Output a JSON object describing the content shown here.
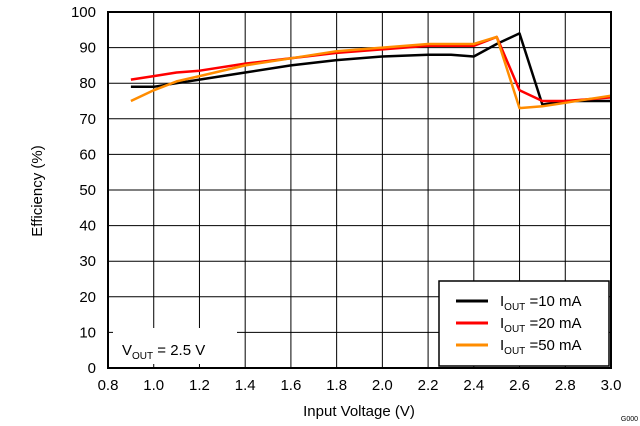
{
  "chart_data": {
    "type": "line",
    "xlabel": "Input Voltage (V)",
    "ylabel": "Efficiency (%)",
    "xlim": [
      0.8,
      3.0
    ],
    "ylim": [
      0,
      100
    ],
    "xticks": [
      0.8,
      1.0,
      1.2,
      1.4,
      1.6,
      1.8,
      2.0,
      2.2,
      2.4,
      2.6,
      2.8,
      3.0
    ],
    "xtick_labels": [
      "0.8",
      "1.0",
      "1.2",
      "1.4",
      "1.6",
      "1.8",
      "2.0",
      "2.2",
      "2.4",
      "2.6",
      "2.8",
      "3.0"
    ],
    "yticks": [
      0,
      10,
      20,
      30,
      40,
      50,
      60,
      70,
      80,
      90,
      100
    ],
    "ytick_labels": [
      "0",
      "10",
      "20",
      "30",
      "40",
      "50",
      "60",
      "70",
      "80",
      "90",
      "100"
    ],
    "grid": true,
    "legend_position": "bottom-right",
    "annotation": {
      "prefix": "V",
      "subscript": "OUT",
      "suffix": " = 2.5 V",
      "position": "bottom-left"
    },
    "watermark": "G000",
    "series": [
      {
        "name": "IOUT=10 mA",
        "label_prefix": "I",
        "label_subscript": "OUT",
        "label_suffix": " =10 mA",
        "color": "#000000",
        "x": [
          0.9,
          1.0,
          1.1,
          1.2,
          1.4,
          1.6,
          1.8,
          2.0,
          2.2,
          2.3,
          2.4,
          2.5,
          2.6,
          2.7,
          2.8,
          2.9,
          3.0
        ],
        "y": [
          79,
          79,
          80,
          81,
          83,
          85,
          86.5,
          87.5,
          88,
          88,
          87.5,
          91,
          94,
          74,
          75,
          75,
          75
        ]
      },
      {
        "name": "IOUT=20 mA",
        "label_prefix": "I",
        "label_subscript": "OUT",
        "label_suffix": " =20 mA",
        "color": "#ff0000",
        "x": [
          0.9,
          1.0,
          1.1,
          1.2,
          1.4,
          1.6,
          1.8,
          2.0,
          2.2,
          2.3,
          2.4,
          2.5,
          2.6,
          2.7,
          2.8,
          2.9,
          3.0
        ],
        "y": [
          81,
          82,
          83,
          83.5,
          85.5,
          87,
          88.5,
          89.5,
          90.5,
          90.5,
          90.5,
          93,
          78,
          75,
          75,
          75.5,
          76
        ]
      },
      {
        "name": "IOUT=50 mA",
        "label_prefix": "I",
        "label_subscript": "OUT",
        "label_suffix": " =50 mA",
        "color": "#ff8c00",
        "x": [
          0.9,
          1.0,
          1.1,
          1.2,
          1.4,
          1.6,
          1.8,
          2.0,
          2.2,
          2.3,
          2.4,
          2.5,
          2.6,
          2.7,
          2.8,
          2.9,
          3.0
        ],
        "y": [
          75,
          78,
          80.5,
          82,
          85,
          87,
          89,
          90,
          91,
          91,
          91,
          93,
          73,
          73.5,
          74.5,
          75.5,
          76.5
        ]
      }
    ]
  }
}
